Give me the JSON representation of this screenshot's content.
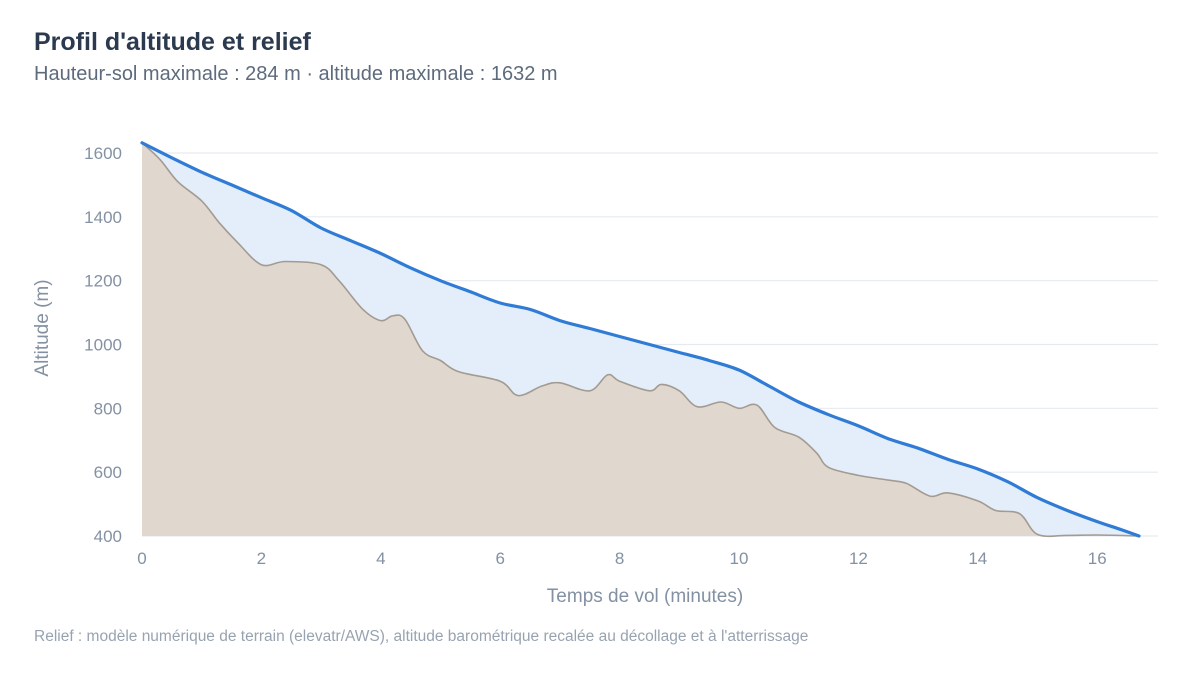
{
  "title": "Profil d'altitude et relief",
  "subtitle": "Hauteur-sol maximale : 284 m · altitude maximale : 1632 m",
  "caption": "Relief : modèle numérique de terrain (elevatr/AWS), altitude barométrique recalée au décollage et à l'atterrissage",
  "colors": {
    "altitude_line": "#2f7bd6",
    "air_fill": "#e3eefa",
    "terrain_fill": "#e0d8cf",
    "terrain_line": "#a39b91",
    "grid": "#e6eaef"
  },
  "chart_data": {
    "type": "area",
    "xlabel": "Temps de vol (minutes)",
    "ylabel": "Altitude (m)",
    "xlim": [
      0,
      17
    ],
    "ylim": [
      400,
      1640
    ],
    "x_ticks": [
      0,
      2,
      4,
      6,
      8,
      10,
      12,
      14,
      16
    ],
    "y_ticks": [
      400,
      600,
      800,
      1000,
      1200,
      1400,
      1600
    ],
    "grid": "horizontal",
    "series": [
      {
        "role": "altitude",
        "points": [
          [
            0,
            1632
          ],
          [
            0.5,
            1585
          ],
          [
            1,
            1540
          ],
          [
            1.5,
            1500
          ],
          [
            2,
            1460
          ],
          [
            2.5,
            1420
          ],
          [
            3,
            1365
          ],
          [
            3.5,
            1325
          ],
          [
            4,
            1285
          ],
          [
            4.5,
            1240
          ],
          [
            5,
            1200
          ],
          [
            5.5,
            1165
          ],
          [
            6,
            1130
          ],
          [
            6.5,
            1110
          ],
          [
            7,
            1075
          ],
          [
            7.5,
            1050
          ],
          [
            8,
            1025
          ],
          [
            8.5,
            1000
          ],
          [
            9,
            975
          ],
          [
            9.5,
            950
          ],
          [
            10,
            920
          ],
          [
            10.5,
            870
          ],
          [
            11,
            820
          ],
          [
            11.5,
            780
          ],
          [
            12,
            745
          ],
          [
            12.5,
            705
          ],
          [
            13,
            675
          ],
          [
            13.5,
            640
          ],
          [
            14,
            610
          ],
          [
            14.5,
            570
          ],
          [
            15,
            520
          ],
          [
            15.5,
            480
          ],
          [
            16,
            445
          ],
          [
            16.4,
            420
          ],
          [
            16.7,
            400
          ]
        ]
      },
      {
        "role": "terrain",
        "points": [
          [
            0,
            1632
          ],
          [
            0.3,
            1580
          ],
          [
            0.6,
            1510
          ],
          [
            1,
            1450
          ],
          [
            1.3,
            1380
          ],
          [
            1.6,
            1320
          ],
          [
            2,
            1250
          ],
          [
            2.4,
            1260
          ],
          [
            3,
            1250
          ],
          [
            3.3,
            1200
          ],
          [
            3.7,
            1110
          ],
          [
            4,
            1075
          ],
          [
            4.2,
            1090
          ],
          [
            4.4,
            1080
          ],
          [
            4.7,
            980
          ],
          [
            5,
            950
          ],
          [
            5.3,
            915
          ],
          [
            6,
            885
          ],
          [
            6.3,
            840
          ],
          [
            6.7,
            870
          ],
          [
            7,
            880
          ],
          [
            7.5,
            855
          ],
          [
            7.8,
            905
          ],
          [
            8,
            885
          ],
          [
            8.5,
            855
          ],
          [
            8.7,
            875
          ],
          [
            9,
            855
          ],
          [
            9.3,
            805
          ],
          [
            9.7,
            820
          ],
          [
            10,
            800
          ],
          [
            10.3,
            810
          ],
          [
            10.6,
            740
          ],
          [
            11,
            710
          ],
          [
            11.3,
            660
          ],
          [
            11.5,
            615
          ],
          [
            12,
            590
          ],
          [
            12.5,
            575
          ],
          [
            12.8,
            565
          ],
          [
            13.2,
            525
          ],
          [
            13.5,
            535
          ],
          [
            14,
            510
          ],
          [
            14.3,
            480
          ],
          [
            14.7,
            470
          ],
          [
            15,
            405
          ],
          [
            15.5,
            402
          ],
          [
            16,
            403
          ],
          [
            16.7,
            400
          ]
        ]
      }
    ]
  }
}
